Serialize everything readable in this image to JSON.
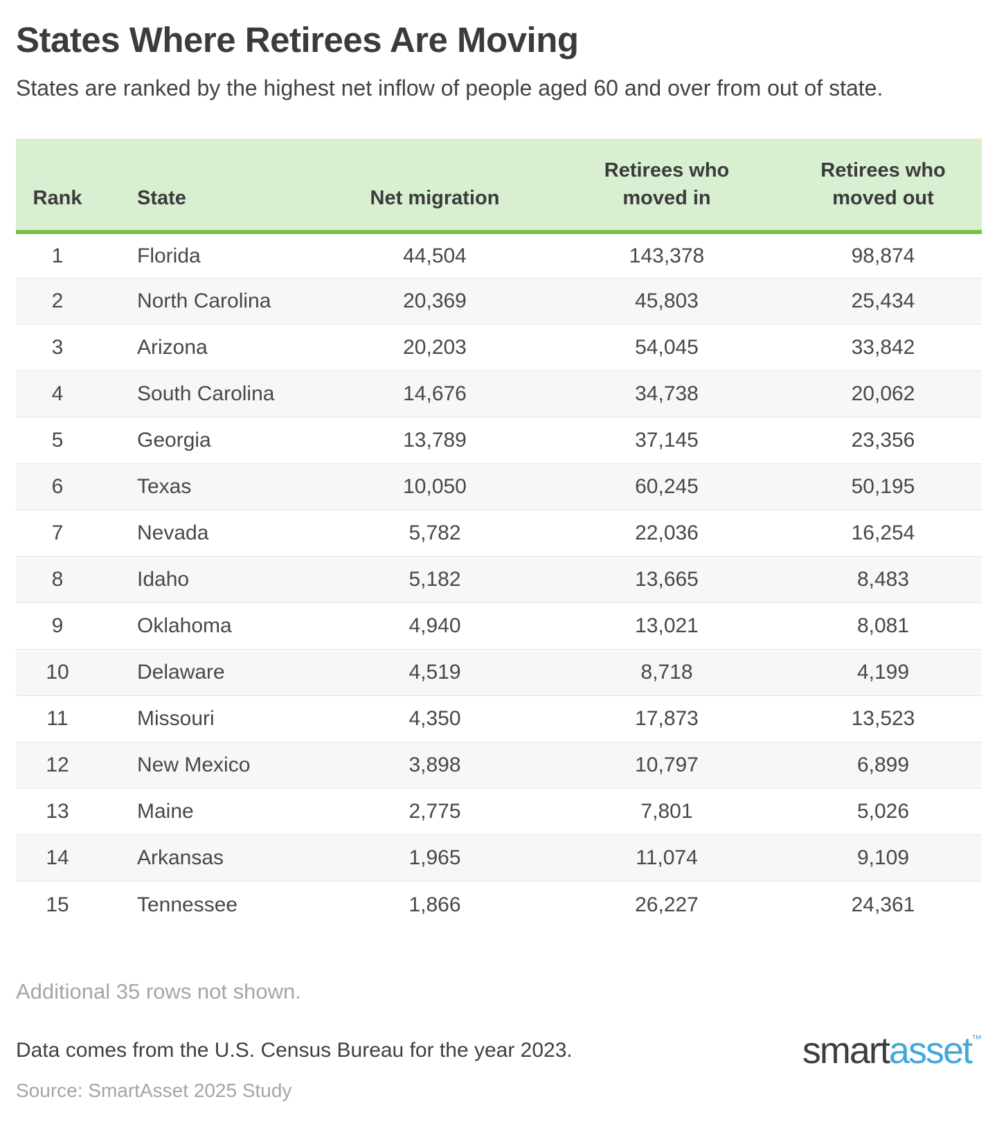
{
  "header": {
    "title": "States Where Retirees Are Moving",
    "subtitle": "States are ranked by the highest net inflow of people aged 60 and over from out of state."
  },
  "table": {
    "columns": [
      "Rank",
      "State",
      "Net migration",
      "Retirees who moved in",
      "Retirees who moved out"
    ],
    "rows": [
      [
        "1",
        "Florida",
        "44,504",
        "143,378",
        "98,874"
      ],
      [
        "2",
        "North Carolina",
        "20,369",
        "45,803",
        "25,434"
      ],
      [
        "3",
        "Arizona",
        "20,203",
        "54,045",
        "33,842"
      ],
      [
        "4",
        "South Carolina",
        "14,676",
        "34,738",
        "20,062"
      ],
      [
        "5",
        "Georgia",
        "13,789",
        "37,145",
        "23,356"
      ],
      [
        "6",
        "Texas",
        "10,050",
        "60,245",
        "50,195"
      ],
      [
        "7",
        "Nevada",
        "5,782",
        "22,036",
        "16,254"
      ],
      [
        "8",
        "Idaho",
        "5,182",
        "13,665",
        "8,483"
      ],
      [
        "9",
        "Oklahoma",
        "4,940",
        "13,021",
        "8,081"
      ],
      [
        "10",
        "Delaware",
        "4,519",
        "8,718",
        "4,199"
      ],
      [
        "11",
        "Missouri",
        "4,350",
        "17,873",
        "13,523"
      ],
      [
        "12",
        "New Mexico",
        "3,898",
        "10,797",
        "6,899"
      ],
      [
        "13",
        "Maine",
        "2,775",
        "7,801",
        "5,026"
      ],
      [
        "14",
        "Arkansas",
        "1,965",
        "11,074",
        "9,109"
      ],
      [
        "15",
        "Tennessee",
        "1,866",
        "26,227",
        "24,361"
      ]
    ]
  },
  "chart_data": {
    "type": "table",
    "title": "States Where Retirees Are Moving",
    "subtitle": "States are ranked by the highest net inflow of people aged 60 and over from out of state.",
    "columns": [
      "Rank",
      "State",
      "Net migration",
      "Retirees who moved in",
      "Retirees who moved out"
    ],
    "rows": [
      [
        1,
        "Florida",
        44504,
        143378,
        98874
      ],
      [
        2,
        "North Carolina",
        20369,
        45803,
        25434
      ],
      [
        3,
        "Arizona",
        20203,
        54045,
        33842
      ],
      [
        4,
        "South Carolina",
        14676,
        34738,
        20062
      ],
      [
        5,
        "Georgia",
        13789,
        37145,
        23356
      ],
      [
        6,
        "Texas",
        10050,
        60245,
        50195
      ],
      [
        7,
        "Nevada",
        5782,
        22036,
        16254
      ],
      [
        8,
        "Idaho",
        5182,
        13665,
        8483
      ],
      [
        9,
        "Oklahoma",
        4940,
        13021,
        8081
      ],
      [
        10,
        "Delaware",
        4519,
        8718,
        4199
      ],
      [
        11,
        "Missouri",
        4350,
        17873,
        13523
      ],
      [
        12,
        "New Mexico",
        3898,
        10797,
        6899
      ],
      [
        13,
        "Maine",
        2775,
        7801,
        5026
      ],
      [
        14,
        "Arkansas",
        1965,
        11074,
        9109
      ],
      [
        15,
        "Tennessee",
        1866,
        26227,
        24361
      ]
    ],
    "notes": {
      "additional_rows": "Additional 35 rows not shown.",
      "data_source": "Data comes from the U.S. Census Bureau for the year 2023.",
      "study": "Source: SmartAsset 2025 Study"
    }
  },
  "footer": {
    "additional_note": "Additional 35 rows not shown.",
    "data_note": "Data comes from the U.S. Census Bureau for the year 2023.",
    "source_note": "Source: SmartAsset 2025 Study",
    "logo": {
      "part1": "smart",
      "part2": "asset",
      "tm": "™"
    }
  },
  "colors": {
    "header_bg": "#d8efd2",
    "header_accent_line": "#7ac143",
    "stripe_bg": "#f7f7f7",
    "row_divider": "#e5e5e5",
    "text_dark": "#3b3b3b",
    "text_body": "#474747",
    "text_muted": "#a5a5a5",
    "logo_blue": "#41a9da",
    "logo_dark": "#3d3d3d"
  }
}
